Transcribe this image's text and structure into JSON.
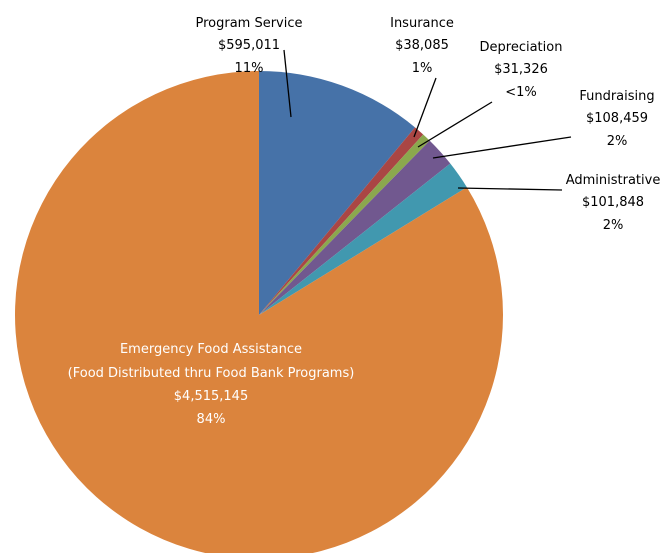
{
  "chart_data": {
    "type": "pie",
    "title": "",
    "slices": [
      {
        "name": "Program Service",
        "amount": "$595,011",
        "percent_label": "11%",
        "value": 595011,
        "color": "#4672A8"
      },
      {
        "name": "Insurance",
        "amount": "$38,085",
        "percent_label": "1%",
        "value": 38085,
        "color": "#AA4644"
      },
      {
        "name": "Depreciation",
        "amount": "$31,326",
        "percent_label": "<1%",
        "value": 31326,
        "color": "#8BA84E"
      },
      {
        "name": "Fundraising",
        "amount": "$108,459",
        "percent_label": "2%",
        "value": 108459,
        "color": "#71588F"
      },
      {
        "name": "Administrative",
        "amount": "$101,848",
        "percent_label": "2%",
        "value": 101848,
        "color": "#4198AF"
      },
      {
        "name": "Emergency Food Assistance",
        "name_line2": "(Food Distributed thru Food Bank Programs)",
        "amount": "$4,515,145",
        "percent_label": "84%",
        "value": 4515145,
        "color": "#DB843D"
      }
    ]
  }
}
